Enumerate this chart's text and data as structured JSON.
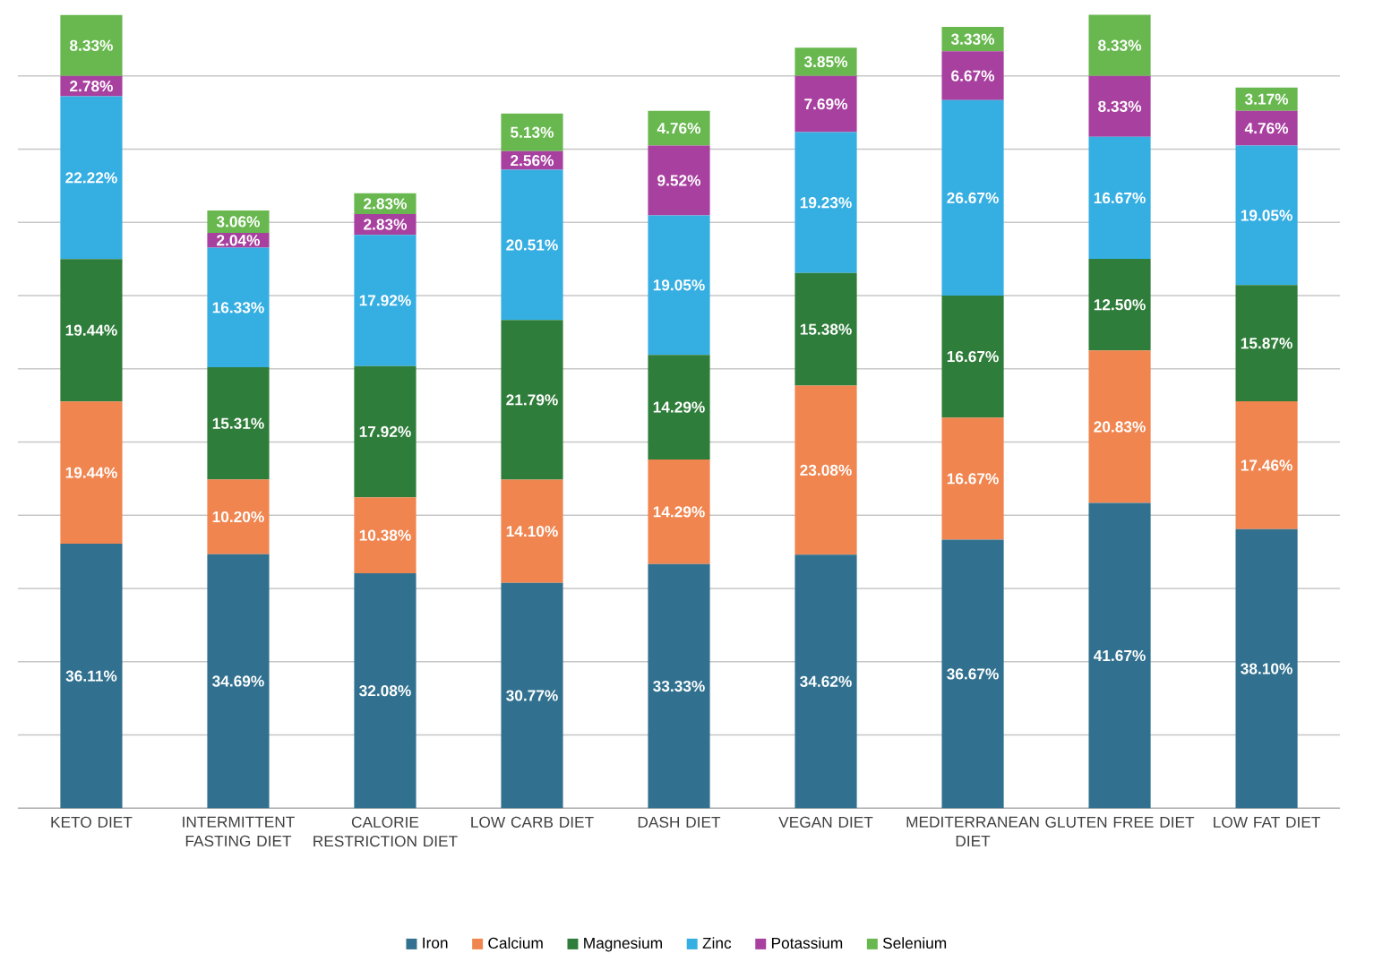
{
  "chart_data": {
    "type": "bar",
    "stacked": true,
    "categories": [
      "KETO DIET",
      "INTERMITTENT FASTING DIET",
      "CALORIE RESTRICTION DIET",
      "LOW CARB DIET",
      "DASH DIET",
      "VEGAN DIET",
      "MEDITERRANEAN DIET",
      "GLUTEN FREE DIET",
      "LOW FAT DIET"
    ],
    "series": [
      {
        "name": "Iron",
        "color": "#31718f",
        "values": [
          36.11,
          34.69,
          32.08,
          30.77,
          33.33,
          34.62,
          36.67,
          41.67,
          38.1
        ],
        "value_labels": [
          "36.11%",
          "34.69%",
          "32.08%",
          "30.77%",
          "33.33%",
          "34.62%",
          "36.67%",
          "41.67%",
          "38.10%"
        ]
      },
      {
        "name": "Calcium",
        "color": "#f0854f",
        "values": [
          19.44,
          10.2,
          10.38,
          14.1,
          14.29,
          23.08,
          16.67,
          20.83,
          17.46
        ],
        "value_labels": [
          "19.44%",
          "10.20%",
          "10.38%",
          "14.10%",
          "14.29%",
          "23.08%",
          "16.67%",
          "20.83%",
          "17.46%"
        ]
      },
      {
        "name": "Magnesium",
        "color": "#2f7d3a",
        "values": [
          19.44,
          15.31,
          17.92,
          21.79,
          14.29,
          15.38,
          16.67,
          12.5,
          15.87
        ],
        "value_labels": [
          "19.44%",
          "15.31%",
          "17.92%",
          "21.79%",
          "14.29%",
          "15.38%",
          "16.67%",
          "12.50%",
          "15.87%"
        ]
      },
      {
        "name": "Zinc",
        "color": "#35aee2",
        "values": [
          22.22,
          16.33,
          17.92,
          20.51,
          19.05,
          19.23,
          26.67,
          16.67,
          19.05
        ],
        "value_labels": [
          "22.22%",
          "16.33%",
          "17.92%",
          "20.51%",
          "19.05%",
          "19.23%",
          "26.67%",
          "16.67%",
          "19.05%"
        ]
      },
      {
        "name": "Potassium",
        "color": "#a8409f",
        "values": [
          2.78,
          2.04,
          2.83,
          2.56,
          9.52,
          7.69,
          6.67,
          8.33,
          4.76
        ],
        "value_labels": [
          "2.78%",
          "2.04%",
          "2.83%",
          "2.56%",
          "9.52%",
          "7.69%",
          "6.67%",
          "8.33%",
          "4.76%"
        ]
      },
      {
        "name": "Selenium",
        "color": "#68b84f",
        "values": [
          8.33,
          3.06,
          2.83,
          5.13,
          4.76,
          3.85,
          3.33,
          8.33,
          3.17
        ],
        "value_labels": [
          "8.33%",
          "3.06%",
          "2.83%",
          "5.13%",
          "4.76%",
          "3.85%",
          "3.33%",
          "8.33%",
          "3.17%"
        ]
      }
    ],
    "grid": "y",
    "legend": "bottom",
    "tick_labels": "x"
  }
}
